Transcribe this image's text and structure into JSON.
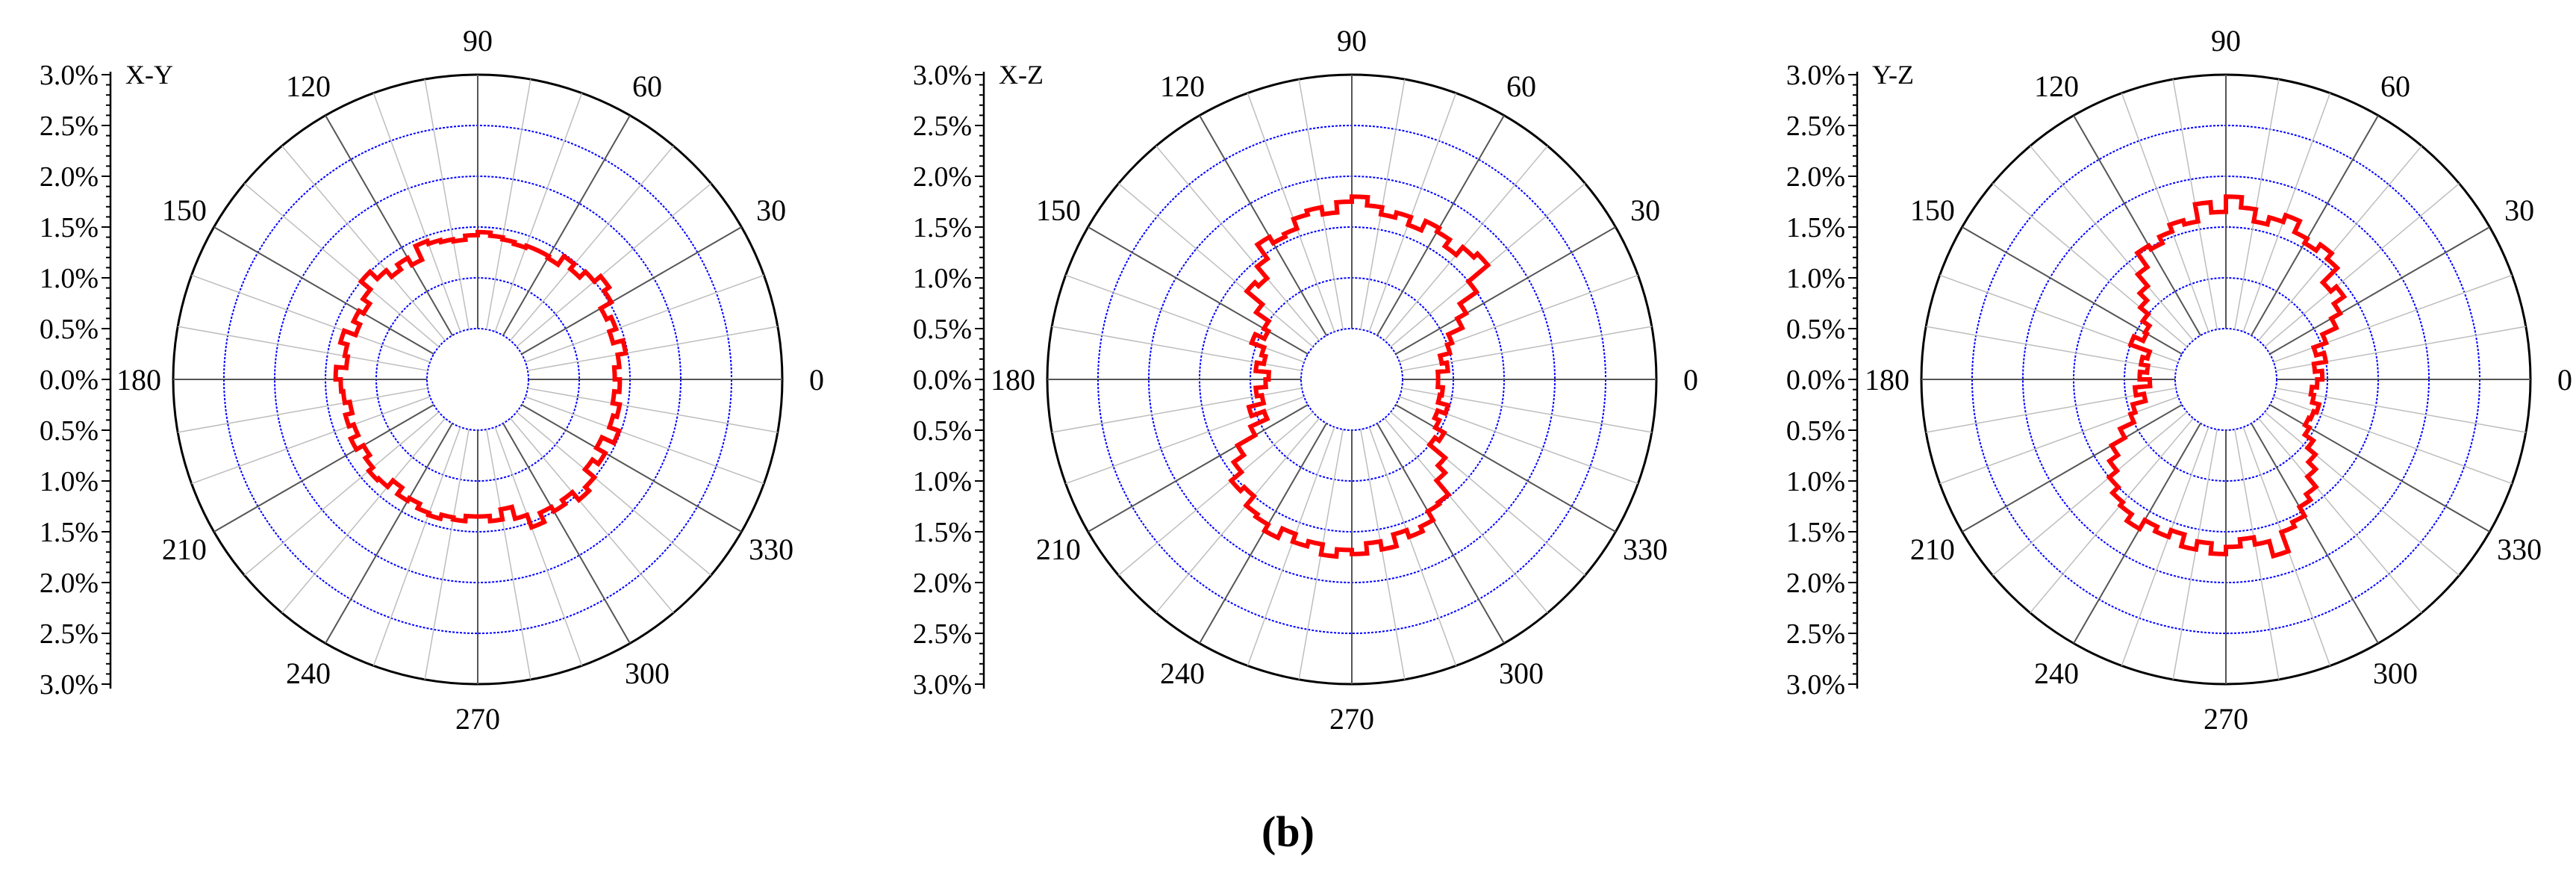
{
  "chart_data": [
    {
      "type": "polar-histogram",
      "panel_label": "X-Y",
      "radial_axis": {
        "unit": "%",
        "range": [
          0,
          3.0
        ],
        "ticks": [
          "0.0%",
          "0.5%",
          "1.0%",
          "1.5%",
          "2.0%",
          "2.5%",
          "3.0%"
        ],
        "gridline_values": [
          0.5,
          1.0,
          1.5,
          2.0,
          2.5
        ],
        "gridline_color": "#0000ff"
      },
      "angular_axis": {
        "ticks": [
          "0",
          "30",
          "60",
          "90",
          "120",
          "150",
          "180",
          "210",
          "240",
          "270",
          "300",
          "330"
        ]
      },
      "series": [
        {
          "color": "#ff0000",
          "bin_width_deg": 5,
          "theta_start_deg": [
            0,
            5,
            10,
            15,
            20,
            25,
            30,
            35,
            40,
            45,
            50,
            55,
            60,
            65,
            70,
            75,
            80,
            85,
            90,
            95,
            100,
            105,
            110,
            115,
            120,
            125,
            130,
            135,
            140,
            145,
            150,
            155,
            160,
            165,
            170,
            175,
            180,
            185,
            190,
            195,
            200,
            205,
            210,
            215,
            220,
            225,
            230,
            235,
            240,
            245,
            250,
            255,
            260,
            265,
            270,
            275,
            280,
            285,
            290,
            295,
            300,
            305,
            310,
            315,
            320,
            325,
            330,
            335,
            340,
            345,
            350,
            355
          ],
          "values": [
            1.35,
            1.4,
            1.48,
            1.38,
            1.45,
            1.4,
            1.52,
            1.58,
            1.5,
            1.42,
            1.48,
            1.38,
            1.4,
            1.4,
            1.38,
            1.4,
            1.42,
            1.45,
            1.42,
            1.38,
            1.4,
            1.42,
            1.45,
            1.3,
            1.38,
            1.32,
            1.4,
            1.5,
            1.38,
            1.3,
            1.35,
            1.28,
            1.4,
            1.33,
            1.3,
            1.4,
            1.35,
            1.33,
            1.28,
            1.35,
            1.3,
            1.38,
            1.3,
            1.35,
            1.4,
            1.38,
            1.3,
            1.38,
            1.35,
            1.4,
            1.42,
            1.38,
            1.4,
            1.35,
            1.35,
            1.4,
            1.3,
            1.42,
            1.55,
            1.45,
            1.5,
            1.45,
            1.55,
            1.5,
            1.38,
            1.45,
            1.35,
            1.48,
            1.38,
            1.42,
            1.35,
            1.4
          ]
        }
      ]
    },
    {
      "type": "polar-histogram",
      "panel_label": "X-Z",
      "radial_axis": {
        "unit": "%",
        "range": [
          0,
          3.0
        ],
        "ticks": [
          "0.0%",
          "0.5%",
          "1.0%",
          "1.5%",
          "2.0%",
          "2.5%",
          "3.0%"
        ],
        "gridline_values": [
          0.5,
          1.0,
          1.5,
          2.0,
          2.5
        ],
        "gridline_color": "#0000ff"
      },
      "angular_axis": {
        "ticks": [
          "0",
          "30",
          "60",
          "90",
          "120",
          "150",
          "180",
          "210",
          "240",
          "270",
          "300",
          "330"
        ]
      },
      "series": [
        {
          "color": "#ff0000",
          "bin_width_deg": 5,
          "theta_start_deg": [
            0,
            5,
            10,
            15,
            20,
            25,
            30,
            35,
            40,
            45,
            50,
            55,
            60,
            65,
            70,
            75,
            80,
            85,
            90,
            95,
            100,
            105,
            110,
            115,
            120,
            125,
            130,
            135,
            140,
            145,
            150,
            155,
            160,
            165,
            170,
            175,
            180,
            185,
            190,
            195,
            200,
            205,
            210,
            215,
            220,
            225,
            230,
            235,
            240,
            245,
            250,
            255,
            260,
            265,
            270,
            275,
            280,
            285,
            290,
            295,
            300,
            305,
            310,
            315,
            320,
            325,
            330,
            335,
            340,
            345,
            350,
            355
          ],
          "values": [
            0.85,
            0.95,
            0.9,
            1.0,
            1.05,
            1.2,
            1.3,
            1.5,
            1.75,
            1.7,
            1.6,
            1.68,
            1.72,
            1.62,
            1.7,
            1.65,
            1.72,
            1.8,
            1.75,
            1.65,
            1.72,
            1.68,
            1.58,
            1.55,
            1.62,
            1.45,
            1.3,
            1.35,
            1.15,
            1.0,
            0.95,
            1.05,
            0.92,
            0.88,
            0.95,
            0.82,
            0.85,
            0.95,
            0.9,
            1.05,
            0.92,
            1.1,
            1.3,
            1.42,
            1.55,
            1.5,
            1.62,
            1.65,
            1.72,
            1.62,
            1.7,
            1.65,
            1.75,
            1.68,
            1.72,
            1.62,
            1.7,
            1.58,
            1.65,
            1.6,
            1.5,
            1.48,
            1.3,
            1.2,
            1.0,
            1.05,
            0.95,
            0.9,
            0.98,
            0.88,
            0.9,
            0.85
          ]
        }
      ]
    },
    {
      "type": "polar-histogram",
      "panel_label": "Y-Z",
      "radial_axis": {
        "unit": "%",
        "range": [
          0,
          3.0
        ],
        "ticks": [
          "0.0%",
          "0.5%",
          "1.0%",
          "1.5%",
          "2.0%",
          "2.5%",
          "3.0%"
        ],
        "gridline_values": [
          0.5,
          1.0,
          1.5,
          2.0,
          2.5
        ],
        "gridline_color": "#0000ff"
      },
      "angular_axis": {
        "ticks": [
          "0",
          "30",
          "60",
          "90",
          "120",
          "150",
          "180",
          "210",
          "240",
          "270",
          "300",
          "330"
        ]
      },
      "series": [
        {
          "color": "#ff0000",
          "bin_width_deg": 5,
          "theta_start_deg": [
            0,
            5,
            10,
            15,
            20,
            25,
            30,
            35,
            40,
            45,
            50,
            55,
            60,
            65,
            70,
            75,
            80,
            85,
            90,
            95,
            100,
            105,
            110,
            115,
            120,
            125,
            130,
            135,
            140,
            145,
            150,
            155,
            160,
            165,
            170,
            175,
            180,
            185,
            190,
            195,
            200,
            205,
            210,
            215,
            220,
            225,
            230,
            235,
            240,
            245,
            250,
            255,
            260,
            265,
            270,
            275,
            280,
            285,
            290,
            295,
            300,
            305,
            310,
            315,
            320,
            325,
            330,
            335,
            340,
            345,
            350,
            355
          ],
          "values": [
            0.95,
            0.88,
            1.0,
            0.92,
            1.05,
            1.2,
            1.3,
            1.42,
            1.35,
            1.55,
            1.62,
            1.55,
            1.6,
            1.72,
            1.65,
            1.58,
            1.7,
            1.8,
            1.65,
            1.75,
            1.58,
            1.62,
            1.55,
            1.48,
            1.52,
            1.35,
            1.2,
            1.1,
            1.0,
            0.92,
            0.9,
            1.0,
            0.8,
            0.85,
            0.78,
            0.85,
            0.75,
            0.9,
            0.82,
            0.95,
            1.0,
            1.15,
            1.3,
            1.4,
            1.5,
            1.58,
            1.62,
            1.7,
            1.6,
            1.65,
            1.58,
            1.7,
            1.62,
            1.72,
            1.65,
            1.58,
            1.65,
            1.8,
            1.6,
            1.55,
            1.45,
            1.38,
            1.25,
            1.15,
            1.05,
            0.95,
            0.9,
            0.92,
            0.95,
            0.88,
            0.85,
            0.9
          ]
        }
      ]
    }
  ],
  "caption": "(b)"
}
